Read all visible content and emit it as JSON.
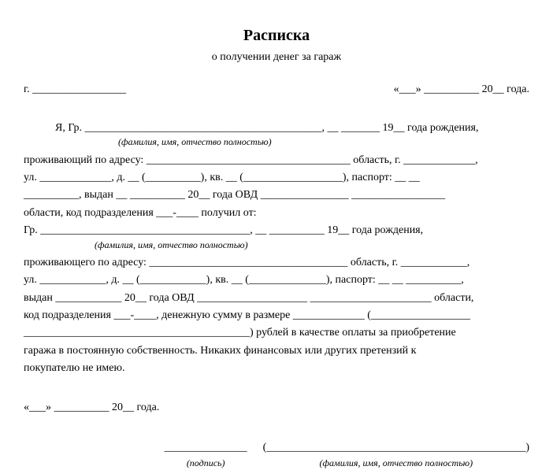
{
  "title": "Расписка",
  "subtitle": "о получении денег за гараж",
  "header": {
    "city_prefix": "г. _________________",
    "date": "«___» __________ 20__ года."
  },
  "body": {
    "line1": "Я,  Гр. ___________________________________________, __ _______ 19__ года рождения,",
    "hint1": "(фамилия, имя, отчество полностью)",
    "line2": "проживающий по адресу: _____________________________________ область, г. _____________,",
    "line3": "ул. _____________,   д. __   (__________),   кв. __   (__________________),   паспорт:   __  __",
    "line4": "__________,   выдан  __  __________  20__   года   ОВД  ________________   _________________",
    "line5": "области, код подразделения ___-____ получил от:",
    "line6": "Гр. ______________________________________, __ __________ 19__ года рождения,",
    "hint2": "(фамилия, имя, отчество полностью)",
    "line7": "проживающего по адресу: ____________________________________ область, г. ____________,",
    "line8": "ул. ____________, д. __ (____________), кв. __ (______________), паспорт: __ __ __________,",
    "line9": "выдан ____________ 20__ года ОВД ____________________ ______________________ области,",
    "line10": "код подразделения ___-____, денежную сумму в размере _____________  (__________________",
    "line11": "_________________________________________) рублей в качестве оплаты за приобретение",
    "line12": "гаража в постоянную собственность. Никаких финансовых или других претензий к",
    "line13": "покупателю не имею."
  },
  "footer": {
    "date": "«___» __________ 20__ года.",
    "sign_line": "_______________",
    "sign_label": "(подпись)",
    "name_line": "(_______________________________________________)",
    "name_label": "(фамилия, имя, отчество полностью)"
  }
}
